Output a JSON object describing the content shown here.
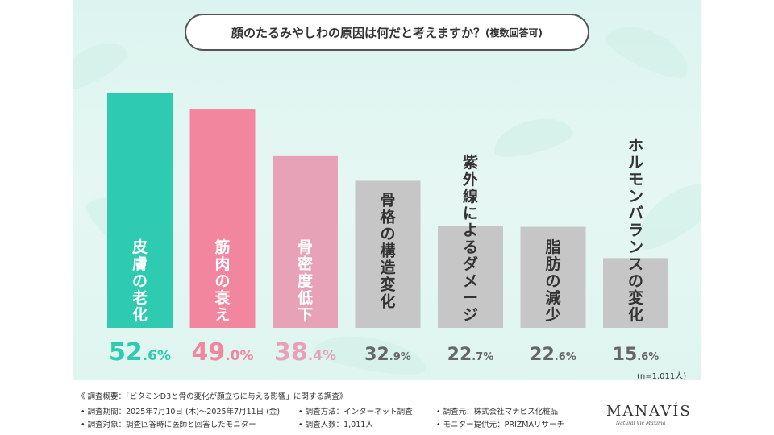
{
  "title": {
    "main": "顔のたるみやしわの原因は何だと考えますか？",
    "sub": "(複数回答可)"
  },
  "chart_data": {
    "type": "bar",
    "categories": [
      "皮膚の老化",
      "筋肉の衰え",
      "骨密度低下",
      "骨格の構造変化",
      "紫外線によるダメージ",
      "脂肪の減少",
      "ホルモンバランスの変化"
    ],
    "values": [
      52.6,
      49.0,
      38.4,
      32.9,
      22.7,
      22.6,
      15.6
    ],
    "value_labels": [
      {
        "int": "52",
        "dec": ".6%"
      },
      {
        "int": "49",
        "dec": ".0%"
      },
      {
        "int": "38",
        "dec": ".4%"
      },
      {
        "int": "32",
        "dec": ".9%"
      },
      {
        "int": "22",
        "dec": ".7%"
      },
      {
        "int": "22",
        "dec": ".6%"
      },
      {
        "int": "15",
        "dec": ".6%"
      }
    ],
    "colors": [
      "#2ecbb0",
      "#f2869f",
      "#e8a2b8",
      "#c6c6c6",
      "#c6c6c6",
      "#c6c6c6",
      "#c6c6c6"
    ],
    "label_colors": [
      "#2ecbb0",
      "#f2869f",
      "#e8a2b8",
      "#666666",
      "#666666",
      "#666666",
      "#666666"
    ],
    "ylim": [
      0,
      60
    ],
    "grid": false
  },
  "note": "(n=1,011人)",
  "footer": {
    "line1": "《 調査概要：「ビタミンD3と骨の変化が顔立ちに与える影響」に関する調査》",
    "line2a": "• 調査期間：2025年7月10日 (木)〜2025年7月11日 (金)",
    "line2b": "• 調査方法：インターネット調査",
    "line2c": "• 調査元：株式会社マナビス化粧品",
    "line3a": "• 調査対象：調査回答時に医師と回答したモニター",
    "line3b": "• 調査人数：1,011人",
    "line3c": "• モニター提供元：PRIZMAリサーチ"
  },
  "logo": {
    "name": "MANAVÍS",
    "tagline": "Natural Vie Maxima"
  }
}
